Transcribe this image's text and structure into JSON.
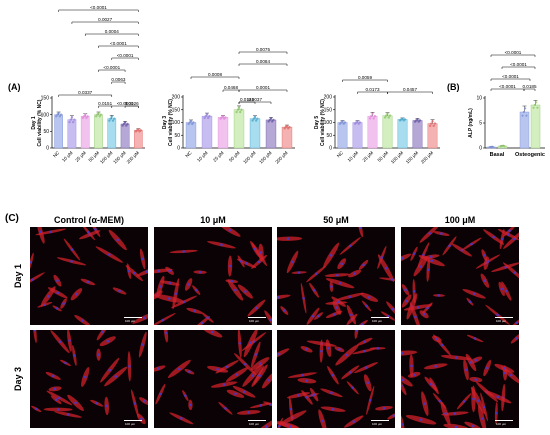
{
  "panel_labels": {
    "A": "(A)",
    "B": "(B)",
    "C": "(C)"
  },
  "colors": {
    "NC": "#b8c6ef",
    "10": "#c8bdf0",
    "25": "#f2c2ef",
    "50": "#d3efc0",
    "100": "#a8dcef",
    "150": "#b5a8d6",
    "200": "#f4b2b2",
    "basal": "#b8c6ef",
    "osteogenic": "#d3efc0",
    "NC_pt": "#7b8fd6",
    "10_pt": "#9a86dc",
    "25_pt": "#e08ad8",
    "50_pt": "#8ec46a",
    "100_pt": "#4aa8cc",
    "150_pt": "#6a5aa6",
    "200_pt": "#e06868"
  },
  "chart_data": [
    {
      "type": "bar",
      "ylabel": "Day 1\nCell viability (% NC)",
      "ylabel_lines": [
        "Day 1",
        "Cell viability (% NC)"
      ],
      "ylim": [
        0,
        150
      ],
      "yticks": [
        "0",
        "50",
        "100",
        "150"
      ],
      "categories": [
        "NC",
        "10 μM",
        "25 μM",
        "50 μM",
        "100 μM",
        "150 μM",
        "200 μM"
      ],
      "values": [
        100,
        85,
        95,
        100,
        88,
        72,
        53
      ],
      "errors": [
        8,
        12,
        8,
        8,
        10,
        8,
        5
      ],
      "brackets": [
        {
          "from": 0,
          "to": 6,
          "label": "<0.0001"
        },
        {
          "from": 1,
          "to": 6,
          "label": "0.0027"
        },
        {
          "from": 2,
          "to": 6,
          "label": "0.0004"
        },
        {
          "from": 3,
          "to": 6,
          "label": "<0.0001"
        },
        {
          "from": 4,
          "to": 6,
          "label": "<0.0001"
        },
        {
          "from": 3,
          "to": 5,
          "label": "<0.0001"
        },
        {
          "from": 4,
          "to": 5,
          "label": "0.0063"
        },
        {
          "from": 0,
          "to": 4,
          "label": "0.0337"
        },
        {
          "from": 3,
          "to": 4,
          "label": "0.0151"
        },
        {
          "from": 4,
          "to": 6,
          "label": "<0.0001"
        },
        {
          "from": 5,
          "to": 6,
          "label": "0.0026"
        }
      ]
    },
    {
      "type": "bar",
      "ylabel_lines": [
        "Day 3",
        "Cell viability (% NC)"
      ],
      "ylim": [
        0,
        200
      ],
      "yticks": [
        "0",
        "50",
        "100",
        "150",
        "200"
      ],
      "categories": [
        "NC",
        "10 μM",
        "25 μM",
        "50 μM",
        "100 μM",
        "150 μM",
        "200 μM"
      ],
      "values": [
        100,
        125,
        120,
        150,
        115,
        110,
        82
      ],
      "errors": [
        10,
        12,
        8,
        15,
        12,
        10,
        8
      ],
      "brackets": [
        {
          "from": 3,
          "to": 6,
          "label": "0.0075"
        },
        {
          "from": 3,
          "to": 6,
          "label": "0.0084"
        },
        {
          "from": 0,
          "to": 3,
          "label": "0.0008"
        },
        {
          "from": 2,
          "to": 3,
          "label": "0.0468"
        },
        {
          "from": 3,
          "to": 6,
          "label": "0.0001"
        },
        {
          "from": 3,
          "to": 4,
          "label": "0.0145"
        },
        {
          "from": 3,
          "to": 5,
          "label": "0.0037"
        }
      ]
    },
    {
      "type": "bar",
      "ylabel_lines": [
        "Day 5",
        "Cell viability (% NC)"
      ],
      "ylim": [
        0,
        200
      ],
      "yticks": [
        "0",
        "50",
        "100",
        "150",
        "200"
      ],
      "categories": [
        "NC",
        "10 μM",
        "25 μM",
        "50 μM",
        "100 μM",
        "150 μM",
        "200 μM"
      ],
      "values": [
        100,
        100,
        125,
        127,
        112,
        108,
        96
      ],
      "errors": [
        8,
        8,
        15,
        12,
        6,
        8,
        15
      ],
      "brackets": [
        {
          "from": 0,
          "to": 3,
          "label": "0.0059"
        },
        {
          "from": 1,
          "to": 3,
          "label": "0.0173"
        },
        {
          "from": 3,
          "to": 6,
          "label": "0.0457"
        }
      ]
    },
    {
      "type": "bar",
      "ylabel_lines": [
        "ALP (ng/mL)"
      ],
      "ylim": [
        0,
        10
      ],
      "yticks": [
        "0",
        "5",
        "10"
      ],
      "groups": [
        "Basal",
        "Osteogenic"
      ],
      "series": [
        {
          "values": [
            0.2,
            7.2
          ],
          "errors": [
            0.1,
            1.2
          ]
        },
        {
          "values": [
            0.4,
            8.6
          ],
          "errors": [
            0.1,
            0.9
          ]
        }
      ],
      "brackets": [
        {
          "label": "<0.0001"
        },
        {
          "label": "<0.0001"
        },
        {
          "label": "<0.0001"
        },
        {
          "label": "<0.0001"
        },
        {
          "label": "0.0185"
        }
      ]
    }
  ],
  "micrographs": {
    "columns": [
      "Control (α-MEM)",
      "10 μM",
      "50 μM",
      "100 μM"
    ],
    "rows": [
      "Day 1",
      "Day 3"
    ],
    "scale_label": "100 μm"
  }
}
